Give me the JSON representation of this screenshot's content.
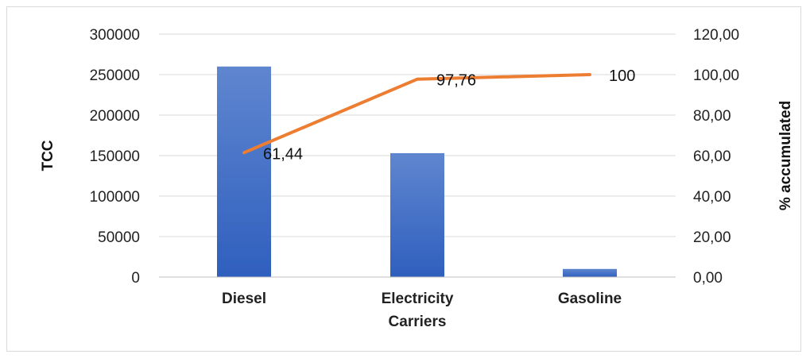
{
  "chart_data": {
    "type": "bar",
    "categories": [
      "Diesel",
      "Electricity Carriers",
      "Gasoline"
    ],
    "category_lines": [
      [
        "Diesel"
      ],
      [
        "Electricity",
        "Carriers"
      ],
      [
        "Gasoline"
      ]
    ],
    "series": [
      {
        "values": [
          260000,
          153000,
          10000
        ],
        "axis": "left",
        "render": "bar",
        "color": "#4472C4"
      },
      {
        "values": [
          61.44,
          97.76,
          100
        ],
        "value_labels": [
          "61,44",
          "97,76",
          "100"
        ],
        "axis": "right",
        "render": "line",
        "color": "#ED7D31"
      }
    ],
    "ylabel": "TCC",
    "y2label": "% accumulated",
    "ylim": [
      0,
      300000
    ],
    "y2lim": [
      0,
      120
    ],
    "yticks": [
      "0",
      "50000",
      "100000",
      "150000",
      "200000",
      "250000",
      "300000"
    ],
    "y2ticks": [
      "0,00",
      "20,00",
      "40,00",
      "60,00",
      "80,00",
      "100,00",
      "120,00"
    ],
    "grid": true,
    "legend": "none"
  }
}
